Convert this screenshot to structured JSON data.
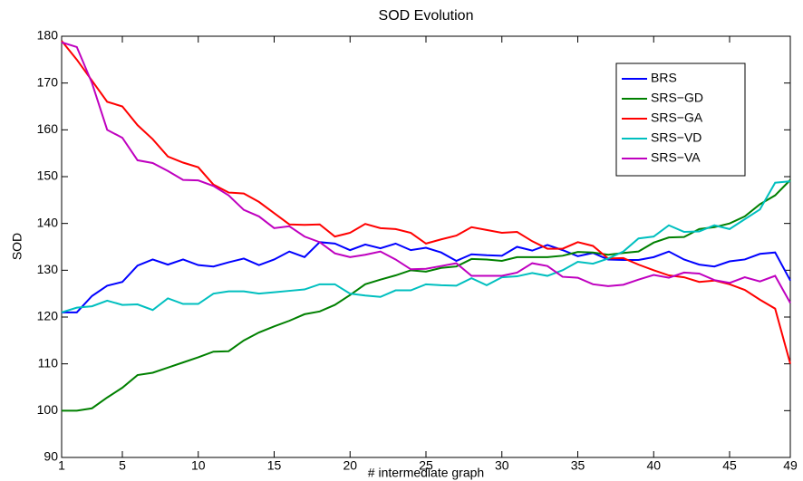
{
  "chart_data": {
    "type": "line",
    "title": "SOD Evolution",
    "x_label": "# intermediate graph",
    "y_label": "SOD",
    "x": [
      1,
      2,
      3,
      4,
      5,
      6,
      7,
      8,
      9,
      10,
      11,
      12,
      13,
      14,
      15,
      16,
      17,
      18,
      19,
      20,
      21,
      22,
      23,
      24,
      25,
      26,
      27,
      28,
      29,
      30,
      31,
      32,
      33,
      34,
      35,
      36,
      37,
      38,
      39,
      40,
      41,
      42,
      43,
      44,
      45,
      46,
      47,
      48,
      49
    ],
    "xlim": [
      1,
      49
    ],
    "xticks": [
      1,
      5,
      10,
      15,
      20,
      25,
      30,
      35,
      40,
      45,
      49
    ],
    "ylim": [
      90,
      180
    ],
    "yticks": [
      90,
      100,
      110,
      120,
      130,
      140,
      150,
      160,
      170,
      180
    ],
    "legend_position": "upper right",
    "series": [
      {
        "name": "BRS",
        "color": "#0000ff",
        "values": [
          121,
          121,
          124.5,
          126.7,
          127.5,
          131,
          132.3,
          131.2,
          132.3,
          131.1,
          130.8,
          131.7,
          132.5,
          131.1,
          132.3,
          134,
          132.8,
          136,
          135.7,
          134.3,
          135.5,
          134.7,
          135.7,
          134.3,
          134.8,
          133.8,
          132,
          133.4,
          133.2,
          133.1,
          135,
          134.2,
          135.4,
          134.3,
          133,
          133.7,
          132.3,
          132.2,
          132.2,
          132.8,
          134,
          132.3,
          131.2,
          130.8,
          131.9,
          132.3,
          133.5,
          133.8,
          127.8
        ]
      },
      {
        "name": "SRS−GD",
        "color": "#008000",
        "values": [
          100,
          100,
          100.5,
          102.8,
          104.9,
          107.6,
          108.1,
          109.2,
          110.3,
          111.4,
          112.6,
          112.7,
          115,
          116.7,
          118,
          119.2,
          120.6,
          121.2,
          122.6,
          124.7,
          127,
          128,
          128.9,
          130,
          129.7,
          130.5,
          130.8,
          132.4,
          132.3,
          132,
          132.8,
          132.8,
          132.8,
          133.1,
          133.9,
          133.8,
          133.3,
          133.7,
          134,
          135.9,
          137,
          137.1,
          138.8,
          139.2,
          140,
          141.5,
          144.1,
          146,
          149.3
        ]
      },
      {
        "name": "SRS−GA",
        "color": "#ff0000",
        "values": [
          179,
          175,
          170.5,
          166,
          165,
          161,
          158,
          154.3,
          153,
          152,
          148.3,
          146.6,
          146.4,
          144.6,
          142.2,
          139.8,
          139.7,
          139.8,
          137.2,
          138,
          139.9,
          139,
          138.8,
          138,
          135.7,
          136.6,
          137.4,
          139.2,
          138.6,
          138,
          138.2,
          136.2,
          134.6,
          134.6,
          136,
          135.2,
          132.5,
          132.6,
          131.2,
          130,
          128.9,
          128.5,
          127.5,
          127.8,
          127,
          125.8,
          123.7,
          121.8,
          110
        ]
      },
      {
        "name": "SRS−VD",
        "color": "#00bfbf",
        "values": [
          121,
          122,
          122.3,
          123.5,
          122.6,
          122.7,
          121.5,
          124,
          122.8,
          122.8,
          125,
          125.5,
          125.5,
          125,
          125.3,
          125.6,
          125.9,
          127,
          127,
          125,
          124.6,
          124.3,
          125.7,
          125.7,
          127,
          126.8,
          126.7,
          128.3,
          126.8,
          128.5,
          128.7,
          129.4,
          128.8,
          130,
          131.8,
          131.4,
          132.5,
          134,
          136.8,
          137.2,
          139.6,
          138.2,
          138.3,
          139.6,
          138.8,
          140.9,
          143,
          148.7,
          149
        ]
      },
      {
        "name": "SRS−VA",
        "color": "#bf00bf",
        "values": [
          178.7,
          177.7,
          170,
          160,
          158.3,
          153.5,
          152.9,
          151.2,
          149.3,
          149.2,
          148,
          146,
          142.9,
          141.5,
          139,
          139.4,
          137.2,
          136,
          133.6,
          132.8,
          133.3,
          134,
          132.3,
          130.2,
          130.3,
          130.9,
          131.5,
          128.8,
          128.8,
          128.8,
          129.5,
          131.5,
          130.9,
          128.6,
          128.4,
          127,
          126.6,
          126.9,
          128,
          129,
          128.4,
          129.5,
          129.3,
          127.9,
          127.3,
          128.5,
          127.6,
          128.8,
          123
        ]
      }
    ]
  }
}
